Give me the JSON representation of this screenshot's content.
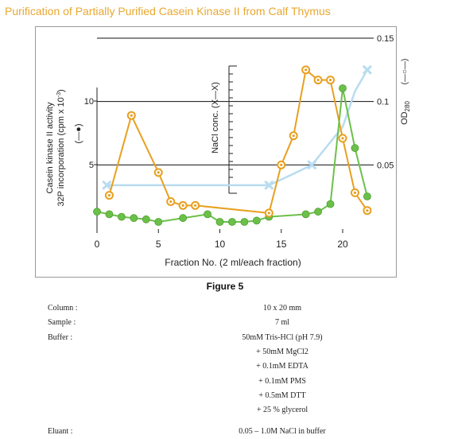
{
  "page": {
    "title": "Purification of Partially Purified Casein Kinase II from Calf Thymus",
    "figure_caption": "Figure 5"
  },
  "colors": {
    "title": "#e8a830",
    "orange": "#e8a020",
    "green": "#6cc04a",
    "blue": "#b8dcf0",
    "axis": "#222222"
  },
  "chart_data": {
    "type": "line",
    "xlabel": "Fraction No. (2 ml/each fraction)",
    "x_ticks": [
      0,
      5,
      10,
      15,
      20
    ],
    "xlim": [
      0,
      22.5
    ],
    "left_axis": {
      "label_line1": "Casein kinase II activity",
      "label_line2_pre": "32P incorporation (cpm x 10",
      "label_line2_sup": "-3",
      "label_line2_post": ")",
      "ticks": [
        5,
        10
      ],
      "legend_marker": "(—●)"
    },
    "right_axis": {
      "label_pre": "OD",
      "label_sub": "280",
      "legend_marker": "(—○—)",
      "ticks": [
        0.05,
        0.1,
        0.15
      ],
      "ylim": [
        0,
        0.15
      ]
    },
    "nacl_axis": {
      "label": "NaCl conc. (X—X)"
    },
    "series": [
      {
        "key": "od280",
        "points": [
          [
            1,
            0.026
          ],
          [
            2.8,
            0.089
          ],
          [
            5,
            0.044
          ],
          [
            6,
            0.021
          ],
          [
            7,
            0.018
          ],
          [
            8,
            0.018
          ],
          [
            14,
            0.012
          ],
          [
            15,
            0.05
          ],
          [
            16,
            0.073
          ],
          [
            17,
            0.125
          ],
          [
            18,
            0.117
          ],
          [
            19,
            0.117
          ],
          [
            20,
            0.071
          ],
          [
            21,
            0.028
          ],
          [
            22,
            0.014
          ]
        ]
      },
      {
        "key": "kinase",
        "points": [
          [
            0,
            1.3
          ],
          [
            1,
            1.1
          ],
          [
            2,
            0.9
          ],
          [
            3,
            0.8
          ],
          [
            4,
            0.7
          ],
          [
            5,
            0.5
          ],
          [
            7,
            0.8
          ],
          [
            9,
            1.1
          ],
          [
            10,
            0.5
          ],
          [
            11,
            0.5
          ],
          [
            12,
            0.5
          ],
          [
            13,
            0.6
          ],
          [
            14,
            0.9
          ],
          [
            17,
            1.1
          ],
          [
            18,
            1.3
          ],
          [
            19,
            1.9
          ],
          [
            20,
            11.0
          ],
          [
            21,
            6.3
          ],
          [
            22,
            2.5
          ]
        ]
      },
      {
        "key": "nacl",
        "points": [
          [
            0.8,
            0.034
          ],
          [
            14,
            0.034
          ],
          [
            16,
            0.043
          ],
          [
            17.5,
            0.05
          ],
          [
            20,
            0.08
          ],
          [
            21,
            0.108
          ],
          [
            22,
            0.125
          ]
        ]
      }
    ]
  },
  "conditions": [
    {
      "label": "Column :",
      "value": "10 x 20 mm"
    },
    {
      "label": "Sample :",
      "value": "7 ml"
    },
    {
      "label": "Buffer :",
      "value": "50mM Tris-HCl (pH 7.9)"
    },
    {
      "label": "",
      "value": "+ 50mM MgCl2"
    },
    {
      "label": "",
      "value": "+ 0.1mM EDTA"
    },
    {
      "label": "",
      "value": "+ 0.1mM PMS"
    },
    {
      "label": "",
      "value": "+ 0.5mM DTT"
    },
    {
      "label": "",
      "value": "+ 25 % glycerol"
    },
    {
      "label": "Eluant :",
      "value": "0.05 – 1.0M NaCl in buffer"
    }
  ]
}
